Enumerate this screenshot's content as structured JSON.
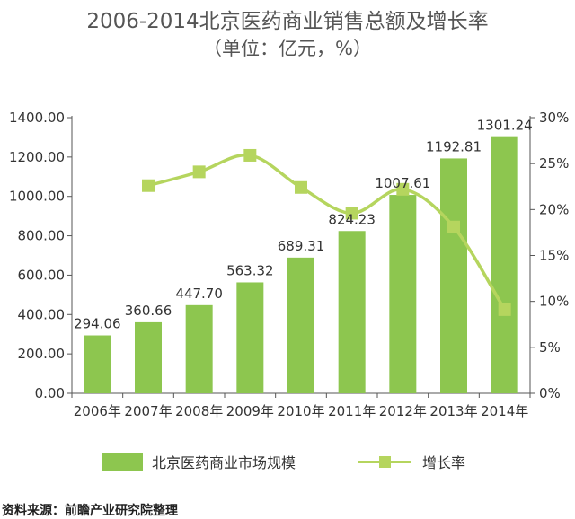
{
  "title": "2006-2014北京医药商业销售总额及增长率",
  "subtitle": "（单位：亿元，%）",
  "source": "资料来源：前瞻产业研究院整理",
  "colors": {
    "bar": "#8dc64f",
    "line": "#b5d55e",
    "axis": "#555555"
  },
  "chart_data": {
    "type": "bar",
    "title": "2006-2014北京医药商业销售总额及增长率",
    "subtitle": "（单位：亿元，%）",
    "categories": [
      "2006年",
      "2007年",
      "2008年",
      "2009年",
      "2010年",
      "2011年",
      "2012年",
      "2013年",
      "2014年"
    ],
    "series": [
      {
        "name": "北京医药商业市场规模",
        "type": "bar",
        "axis": "left",
        "values": [
          294.06,
          360.66,
          447.7,
          563.32,
          689.31,
          824.23,
          1007.61,
          1192.81,
          1301.24
        ],
        "labels": [
          "294.06",
          "360.66",
          "447.70",
          "563.32",
          "689.31",
          "824.23",
          "1007.61",
          "1192.81",
          "1301.24"
        ]
      },
      {
        "name": "增长率",
        "type": "line",
        "axis": "right",
        "values": [
          null,
          22.6,
          24.1,
          25.9,
          22.4,
          19.6,
          22.2,
          18.1,
          9.1
        ]
      }
    ],
    "y_left": {
      "min": 0,
      "max": 1400,
      "step": 200,
      "ticks": [
        "0.00",
        "200.00",
        "400.00",
        "600.00",
        "800.00",
        "1000.00",
        "1200.00",
        "1400.00"
      ]
    },
    "y_right": {
      "min": 0,
      "max": 30,
      "step": 5,
      "ticks": [
        "0%",
        "5%",
        "10%",
        "15%",
        "20%",
        "25%",
        "30%"
      ]
    },
    "grid": false,
    "legend_position": "bottom"
  }
}
